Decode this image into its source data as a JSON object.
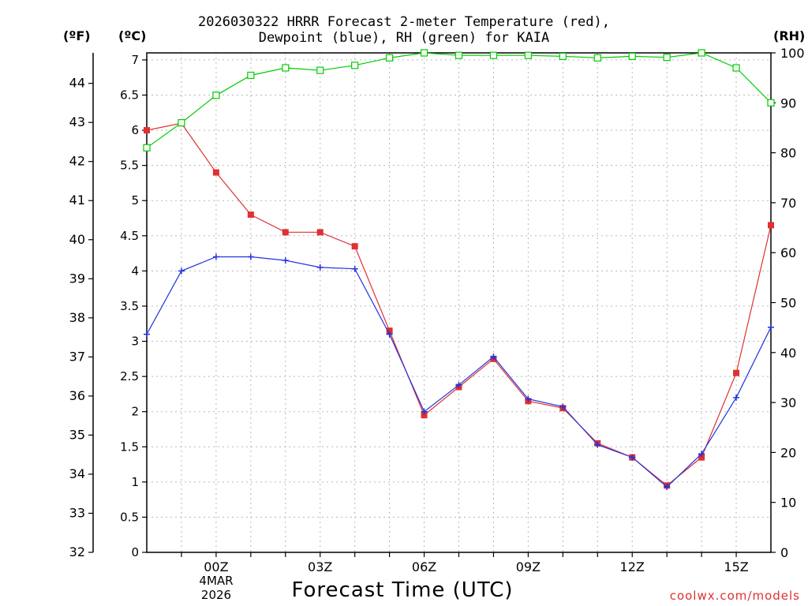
{
  "title": {
    "line1": "2026030322 HRRR Forecast 2-meter Temperature (red),",
    "line2": "Dewpoint (blue), RH (green) for KAIA"
  },
  "units": {
    "f": "(ºF)",
    "c": "(ºC)",
    "rh": "(RH)"
  },
  "x_axis": {
    "label": "Forecast Time (UTC)",
    "date_line1": "4MAR",
    "date_line2": "2026"
  },
  "credit": "coolwx.com/models",
  "colors": {
    "temperature": "#e03030",
    "dewpoint": "#2233dd",
    "rh": "#00cc00",
    "grid": "#b8b8b8"
  },
  "chart_data": {
    "type": "line",
    "x": [
      -2,
      -1,
      0,
      1,
      2,
      3,
      4,
      5,
      6,
      7,
      8,
      9,
      10,
      11,
      12,
      13,
      14,
      15,
      16
    ],
    "x_ticks": [
      {
        "value": 0,
        "label": "00Z"
      },
      {
        "value": 3,
        "label": "03Z"
      },
      {
        "value": 6,
        "label": "06Z"
      },
      {
        "value": 9,
        "label": "09Z"
      },
      {
        "value": 12,
        "label": "12Z"
      },
      {
        "value": 15,
        "label": "15Z"
      }
    ],
    "xlim": [
      -2,
      16
    ],
    "left_axis_c": {
      "ylim": [
        0,
        7.1
      ],
      "ticks": [
        "0",
        "0.5",
        "1",
        "1.5",
        "2",
        "2.5",
        "3",
        "3.5",
        "4",
        "4.5",
        "5",
        "5.5",
        "6",
        "6.5",
        "7"
      ]
    },
    "left_axis_f": {
      "ticks": [
        "32",
        "33",
        "34",
        "35",
        "36",
        "37",
        "38",
        "39",
        "40",
        "41",
        "42",
        "43",
        "44"
      ]
    },
    "right_axis_rh": {
      "ylim": [
        0,
        100
      ],
      "ticks": [
        "0",
        "10",
        "20",
        "30",
        "40",
        "50",
        "60",
        "70",
        "80",
        "90",
        "100"
      ]
    },
    "series": [
      {
        "name": "Temperature (°C)",
        "axis": "c",
        "marker": "square",
        "values": [
          6.0,
          6.1,
          5.4,
          4.8,
          4.55,
          4.55,
          4.35,
          3.15,
          1.95,
          2.35,
          2.75,
          2.15,
          2.05,
          1.55,
          1.35,
          0.95,
          1.35,
          2.55,
          4.65
        ]
      },
      {
        "name": "Dewpoint (°C)",
        "axis": "c",
        "marker": "plus",
        "values": [
          3.1,
          4.0,
          4.2,
          4.2,
          4.15,
          4.05,
          4.03,
          3.1,
          2.0,
          2.38,
          2.78,
          2.18,
          2.07,
          1.53,
          1.35,
          0.93,
          1.4,
          2.2,
          3.2
        ]
      },
      {
        "name": "RH (%)",
        "axis": "rh",
        "marker": "open-square",
        "values": [
          81,
          86,
          91.5,
          95.5,
          97,
          96.5,
          97.5,
          99,
          100,
          99.5,
          99.5,
          99.5,
          99.3,
          99,
          99.3,
          99.1,
          100,
          97,
          90
        ]
      }
    ]
  }
}
